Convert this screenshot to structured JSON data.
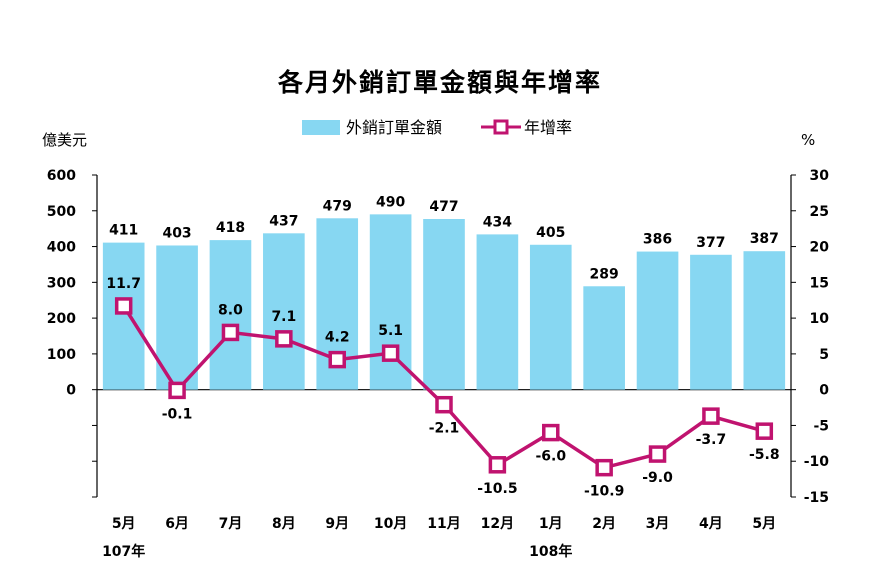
{
  "chart_data": {
    "type": "bar+line",
    "title": "各月外銷訂單金額與年增率",
    "left_unit": "億美元",
    "right_unit": "%",
    "categories": [
      "5月",
      "6月",
      "7月",
      "8月",
      "9月",
      "10月",
      "11月",
      "12月",
      "1月",
      "2月",
      "3月",
      "4月",
      "5月"
    ],
    "year_labels": [
      {
        "text": "107年",
        "category_index": 0
      },
      {
        "text": "108年",
        "category_index": 8
      }
    ],
    "series": [
      {
        "name": "外銷訂單金額",
        "type": "bar",
        "axis": "left",
        "color": "#87d7f2",
        "values": [
          411,
          403,
          418,
          437,
          479,
          490,
          477,
          434,
          405,
          289,
          386,
          377,
          387
        ]
      },
      {
        "name": "年增率",
        "type": "line",
        "axis": "right",
        "color": "#c0136f",
        "values": [
          11.7,
          -0.1,
          8.0,
          7.1,
          4.2,
          5.1,
          -2.1,
          -10.5,
          -6.0,
          -10.9,
          -9.0,
          -3.7,
          -5.8
        ],
        "labels": [
          "11.7",
          "-0.1",
          "8.0",
          "7.1",
          "4.2",
          "5.1",
          "-2.1",
          "-10.5",
          "-6.0",
          "-10.9",
          "-9.0",
          "-3.7",
          "-5.8"
        ]
      }
    ],
    "left_axis": {
      "ylim": [
        -300,
        600
      ],
      "ticks": [
        600,
        500,
        400,
        300,
        200,
        100,
        0
      ],
      "tick_labels": [
        "600",
        "500",
        "400",
        "300",
        "200",
        "100",
        "0"
      ]
    },
    "right_axis": {
      "ylim": [
        -15,
        30
      ],
      "ticks": [
        30,
        25,
        20,
        15,
        10,
        5,
        0,
        -5,
        -10,
        -15
      ],
      "tick_labels": [
        "30",
        "25",
        "20",
        "15",
        "10",
        "5",
        "0",
        "-5",
        "-10",
        "-15"
      ]
    },
    "legend_position": "top-center",
    "grid": false
  }
}
